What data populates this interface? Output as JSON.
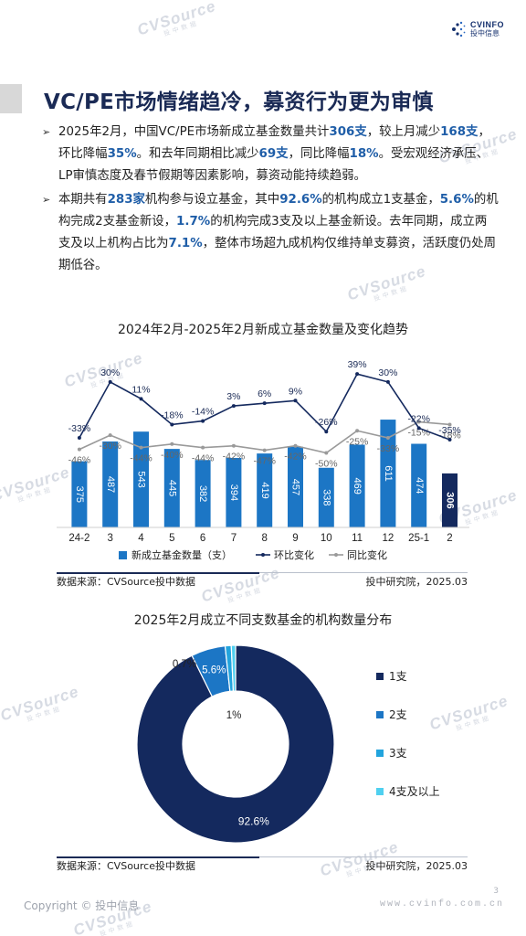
{
  "header": {
    "logo_name": "CVINFO",
    "logo_sub": "投中信息"
  },
  "title": "VC/PE市场情绪趋冷，募资行为更为审慎",
  "bullets": [
    {
      "segments": [
        {
          "t": "2025年2月，中国VC/PE市场新成立基金数量共计",
          "b": false
        },
        {
          "t": "306支",
          "b": true
        },
        {
          "t": "，较上月减少",
          "b": false
        },
        {
          "t": "168支",
          "b": true
        },
        {
          "t": "，环比降幅",
          "b": false
        },
        {
          "t": "35%",
          "b": true
        },
        {
          "t": "。和去年同期相比减少",
          "b": false
        },
        {
          "t": "69支",
          "b": true
        },
        {
          "t": "，同比降幅",
          "b": false
        },
        {
          "t": "18%",
          "b": true
        },
        {
          "t": "。受宏观经济承压、LP审慎态度及春节假期等因素影响，募资动能持续趋弱。",
          "b": false
        }
      ]
    },
    {
      "segments": [
        {
          "t": "本期共有",
          "b": false
        },
        {
          "t": "283家",
          "b": true
        },
        {
          "t": "机构参与设立基金，其中",
          "b": false
        },
        {
          "t": "92.6%",
          "b": true
        },
        {
          "t": "的机构成立1支基金，",
          "b": false
        },
        {
          "t": "5.6%",
          "b": true
        },
        {
          "t": "的机构完成2支基金新设，",
          "b": false
        },
        {
          "t": "1.7%",
          "b": true
        },
        {
          "t": "的机构完成3支及以上基金新设。去年同期，成立两支及以上机构占比为",
          "b": false
        },
        {
          "t": "7.1%",
          "b": true
        },
        {
          "t": "，整体市场超九成机构仅维持单支募资，活跃度仍处周期低谷。",
          "b": false
        }
      ]
    }
  ],
  "chart_data": [
    {
      "type": "bar",
      "title": "2024年2月-2025年2月新成立基金数量及变化趋势",
      "categories": [
        "24-2",
        "3",
        "4",
        "5",
        "6",
        "7",
        "8",
        "9",
        "10",
        "11",
        "12",
        "25-1",
        "2"
      ],
      "series": [
        {
          "name": "新成立基金数量（支）",
          "type": "bar",
          "values": [
            375,
            487,
            543,
            445,
            382,
            394,
            419,
            457,
            338,
            469,
            611,
            474,
            306
          ]
        },
        {
          "name": "环比变化",
          "type": "line",
          "values": [
            -33,
            30,
            11,
            -18,
            -14,
            3,
            6,
            9,
            -26,
            39,
            30,
            -22,
            -35
          ]
        },
        {
          "name": "同比变化",
          "type": "line",
          "values": [
            -46,
            -30,
            -44,
            -40,
            -44,
            -42,
            -47,
            -42,
            -50,
            -25,
            -33,
            -15,
            -18
          ]
        }
      ],
      "legend": "bottom",
      "colors": {
        "bar": "#1c76c5",
        "bar_last": "#14295e",
        "mom": "#14295e",
        "yoy": "#9a9a9a"
      }
    },
    {
      "type": "pie",
      "title": "2025年2月成立不同支数基金的机构数量分布",
      "categories": [
        "1支",
        "2支",
        "3支",
        "4支及以上"
      ],
      "values": [
        92.6,
        5.6,
        1.0,
        0.7
      ],
      "labels": [
        "92.6%",
        "5.6%",
        "1%",
        "0.7%"
      ],
      "colors": [
        "#14295e",
        "#1c76c5",
        "#22a4dd",
        "#4fd0f0"
      ],
      "legend": "right"
    }
  ],
  "source": {
    "left": "数据来源：CVSource投中数据",
    "right": "投中研究院，2025.03"
  },
  "footer": {
    "copyright": "Copyright © 投中信息",
    "url": "www.cvinfo.com.cn",
    "page": "3"
  },
  "watermark": {
    "brand": "CVSource",
    "sub": "投中数据"
  }
}
